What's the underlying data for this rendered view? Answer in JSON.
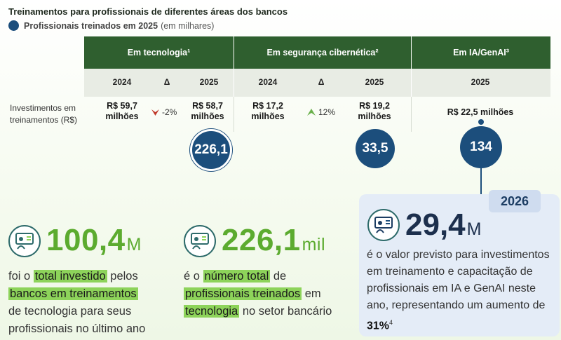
{
  "title": "Treinamentos para profissionais de diferentes áreas dos bancos",
  "legend": {
    "bold": "Profissionais treinados em 2025",
    "rest": "(em milhares)"
  },
  "table": {
    "groups": [
      "Em tecnologia¹",
      "Em segurança cibernética²",
      "Em IA/GenAI³"
    ],
    "subheaders": {
      "tec_2024": "2024",
      "tec_delta": "Δ",
      "tec_2025": "2025",
      "seg_2024": "2024",
      "seg_delta": "Δ",
      "seg_2025": "2025",
      "ia_2025": "2025"
    },
    "row_label": "Investimentos em treinamentos (R$)",
    "tec_2024_l1": "R$ 59,7",
    "tec_2024_l2": "milhões",
    "tec_delta": "-2%",
    "tec_2025_l1": "R$ 58,7",
    "tec_2025_l2": "milhões",
    "seg_2024_l1": "R$ 17,2",
    "seg_2024_l2": "milhões",
    "seg_delta": "12%",
    "seg_2025_l1": "R$ 19,2",
    "seg_2025_l2": "milhões",
    "ia_2025": "R$ 22,5 milhões"
  },
  "bubbles": {
    "tec": "226,1",
    "seg": "33,5",
    "ia": "134"
  },
  "stat1": {
    "number": "100,4",
    "unit": "M",
    "p1": "foi o ",
    "h1": "total investido",
    "p2": " pelos",
    "h2": "bancos em treinamentos",
    "p3": "de tecnologia para seus",
    "p4": "profissionais no último ano"
  },
  "stat2": {
    "number": "226,1",
    "unit": "mil",
    "p1": "é o ",
    "h1": "número total",
    "p2": " de",
    "h2": "profissionais treinados",
    "p3": " em",
    "h3": "tecnologia",
    "p4": " no setor bancário"
  },
  "card2026": {
    "year": "2026",
    "number": "29,4",
    "unit": "M",
    "text": "é o valor previsto para investimentos em treinamento e capacitação de profissionais em IA e GenAI neste ano, representando um aumento de ",
    "pct": "31%",
    "sup": "4"
  },
  "colors": {
    "header_green": "#2f5f2f",
    "bubble_blue": "#1c4e7c",
    "highlight_green": "#8dd35a",
    "number_green": "#5cab2f"
  },
  "icons": [
    "presentation-icon",
    "arrow-down-icon",
    "arrow-up-icon"
  ]
}
